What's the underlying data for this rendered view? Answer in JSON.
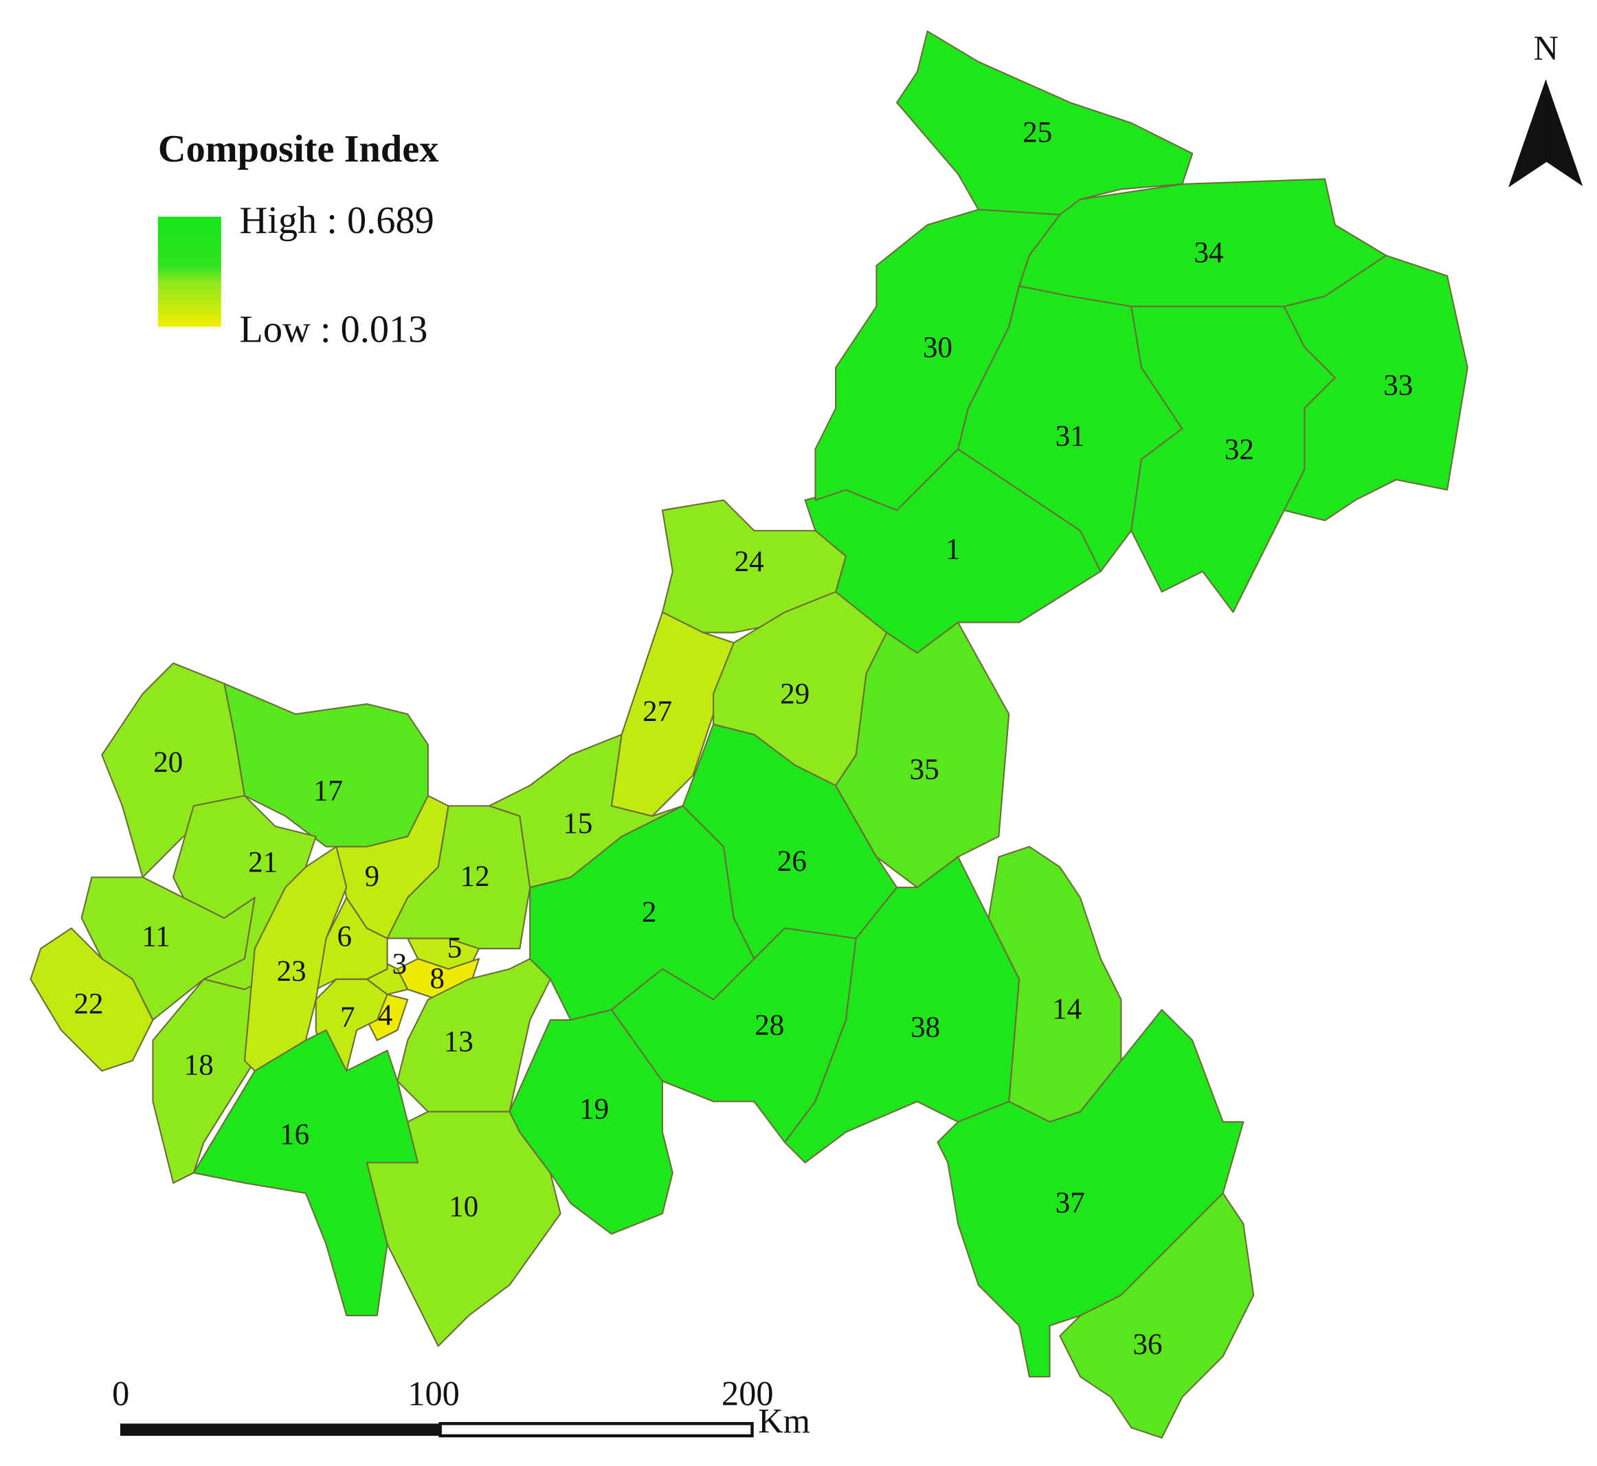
{
  "legend": {
    "title": "Composite Index",
    "high_label": "High : 0.689",
    "low_label": "Low : 0.013",
    "high_color": "#16e51a",
    "low_color": "#f2ee00"
  },
  "north_arrow": {
    "label": "N"
  },
  "scale_bar": {
    "ticks": [
      "0",
      "100",
      "200"
    ],
    "unit": "Km"
  },
  "colors": {
    "high": "#1fe61a",
    "mid_high": "#5ae61c",
    "mid": "#8fe81c",
    "low_mid": "#c2ea10",
    "low": "#eeea00"
  },
  "regions": [
    {
      "id": "1",
      "class": "high"
    },
    {
      "id": "2",
      "class": "high"
    },
    {
      "id": "3",
      "class": "low_mid"
    },
    {
      "id": "4",
      "class": "low"
    },
    {
      "id": "5",
      "class": "low_mid"
    },
    {
      "id": "6",
      "class": "low_mid"
    },
    {
      "id": "7",
      "class": "low_mid"
    },
    {
      "id": "8",
      "class": "low"
    },
    {
      "id": "9",
      "class": "low_mid"
    },
    {
      "id": "10",
      "class": "mid"
    },
    {
      "id": "11",
      "class": "mid"
    },
    {
      "id": "12",
      "class": "mid"
    },
    {
      "id": "13",
      "class": "mid"
    },
    {
      "id": "14",
      "class": "mid_high"
    },
    {
      "id": "15",
      "class": "mid"
    },
    {
      "id": "16",
      "class": "high"
    },
    {
      "id": "17",
      "class": "mid_high"
    },
    {
      "id": "18",
      "class": "mid"
    },
    {
      "id": "19",
      "class": "high"
    },
    {
      "id": "20",
      "class": "mid"
    },
    {
      "id": "21",
      "class": "mid"
    },
    {
      "id": "22",
      "class": "low_mid"
    },
    {
      "id": "23",
      "class": "low_mid"
    },
    {
      "id": "24",
      "class": "mid"
    },
    {
      "id": "25",
      "class": "high"
    },
    {
      "id": "26",
      "class": "high"
    },
    {
      "id": "27",
      "class": "low_mid"
    },
    {
      "id": "28",
      "class": "high"
    },
    {
      "id": "29",
      "class": "mid"
    },
    {
      "id": "30",
      "class": "high"
    },
    {
      "id": "31",
      "class": "high"
    },
    {
      "id": "32",
      "class": "high"
    },
    {
      "id": "33",
      "class": "high"
    },
    {
      "id": "34",
      "class": "high"
    },
    {
      "id": "35",
      "class": "mid_high"
    },
    {
      "id": "36",
      "class": "mid_high"
    },
    {
      "id": "37",
      "class": "high"
    },
    {
      "id": "38",
      "class": "high"
    }
  ]
}
